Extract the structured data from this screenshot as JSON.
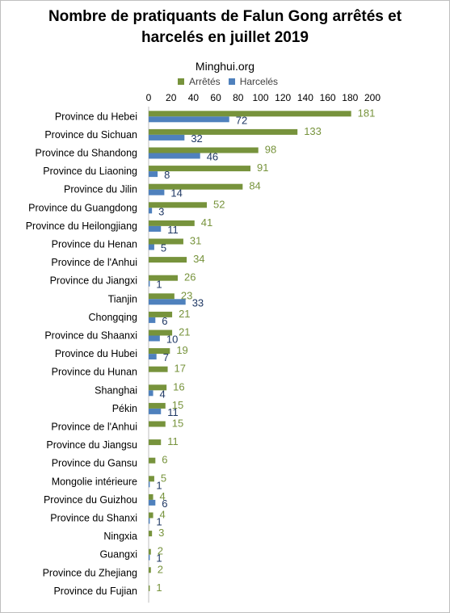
{
  "title_line1": "Nombre de pratiquants  de Falun Gong arrêtés et",
  "title_line2": "harcelés en juillet 2019",
  "source": "Minghui.org",
  "chart_data": {
    "type": "bar",
    "orientation": "horizontal",
    "title": "Nombre de pratiquants  de Falun Gong arrêtés et harcelés en juillet 2019",
    "subtitle": "Minghui.org",
    "xlim": [
      0,
      200
    ],
    "xticks": [
      0,
      20,
      40,
      60,
      80,
      100,
      120,
      140,
      160,
      180,
      200
    ],
    "legend_position": "top",
    "grid": false,
    "categories": [
      "Province du Hebei",
      "Province du Sichuan",
      "Province du Shandong",
      "Province du Liaoning",
      "Province du Jilin",
      "Province du Guangdong",
      "Province du Heilongjiang",
      "Province du Henan",
      "Province de l'Anhui",
      "Province du Jiangxi",
      "Tianjin",
      "Chongqing",
      "Province du Shaanxi",
      "Province du Hubei",
      "Province du Hunan",
      "Shanghai",
      "Pékin",
      "Province de l'Anhui",
      "Province du Jiangsu",
      "Province du Gansu",
      "Mongolie intérieure",
      "Province du Guizhou",
      "Province du Shanxi",
      "Ningxia",
      "Guangxi",
      "Province du Zhejiang",
      "Province du Fujian"
    ],
    "series": [
      {
        "name": "Arrêtés",
        "color": "#77933c",
        "values": [
          181,
          133,
          98,
          91,
          84,
          52,
          41,
          31,
          34,
          26,
          23,
          21,
          21,
          19,
          17,
          16,
          15,
          15,
          11,
          6,
          5,
          4,
          4,
          3,
          2,
          2,
          1
        ]
      },
      {
        "name": "Harcelés",
        "color": "#4f81bd",
        "values": [
          72,
          32,
          46,
          8,
          14,
          3,
          11,
          5,
          null,
          1,
          33,
          6,
          10,
          7,
          null,
          4,
          11,
          null,
          null,
          null,
          1,
          6,
          1,
          null,
          1,
          null,
          null
        ]
      }
    ]
  }
}
